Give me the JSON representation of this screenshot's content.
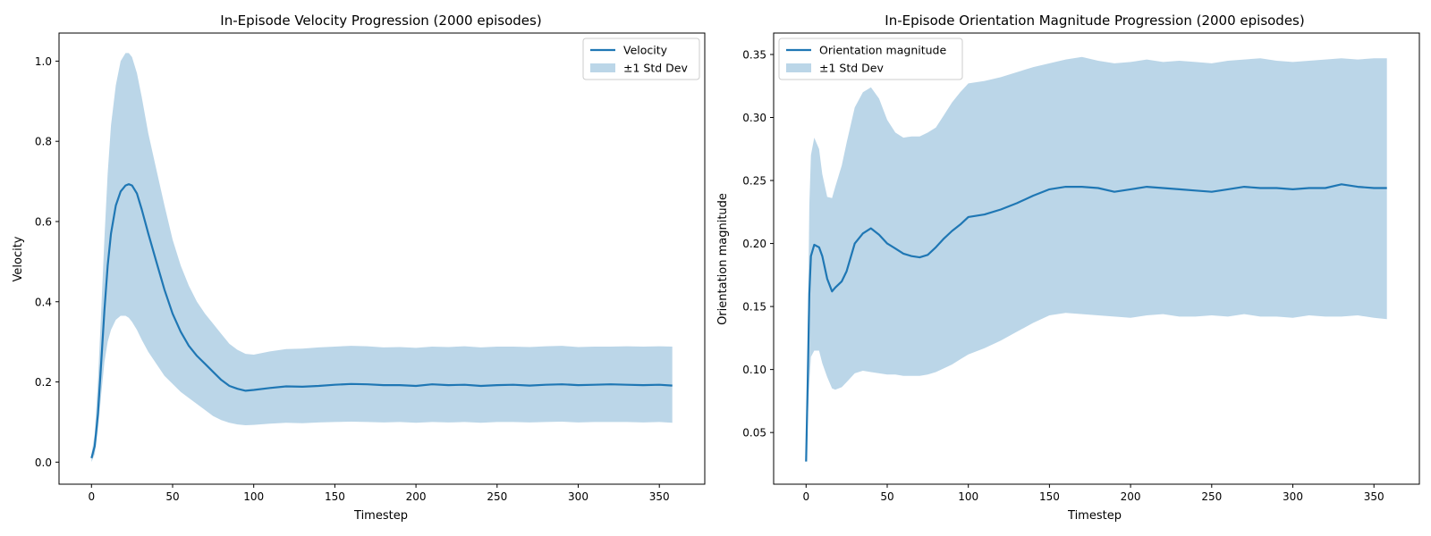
{
  "colors": {
    "line": "#1f77b4",
    "band": "#1f77b4",
    "band_opacity": 0.3
  },
  "chart_data": [
    {
      "type": "line",
      "title": "In-Episode Velocity Progression (2000 episodes)",
      "xlabel": "Timestep",
      "ylabel": "Velocity",
      "xlim": [
        -20,
        378
      ],
      "ylim": [
        -0.055,
        1.07
      ],
      "xticks": [
        0,
        50,
        100,
        150,
        200,
        250,
        300,
        350
      ],
      "yticks": [
        0.0,
        0.2,
        0.4,
        0.6,
        0.8,
        1.0
      ],
      "ytick_labels": [
        "0.0",
        "0.2",
        "0.4",
        "0.6",
        "0.8",
        "1.0"
      ],
      "legend_position": "upper right",
      "series": [
        {
          "name": "Velocity",
          "kind": "line",
          "x": [
            0,
            2,
            4,
            6,
            8,
            10,
            12,
            15,
            18,
            21,
            23,
            25,
            28,
            31,
            35,
            40,
            45,
            50,
            55,
            60,
            65,
            70,
            75,
            80,
            85,
            90,
            95,
            100,
            110,
            120,
            130,
            140,
            150,
            160,
            170,
            180,
            190,
            200,
            210,
            220,
            230,
            240,
            250,
            260,
            270,
            280,
            290,
            300,
            310,
            320,
            330,
            340,
            350,
            358
          ],
          "y": [
            0.01,
            0.04,
            0.12,
            0.25,
            0.38,
            0.49,
            0.57,
            0.64,
            0.675,
            0.69,
            0.693,
            0.69,
            0.67,
            0.63,
            0.57,
            0.5,
            0.43,
            0.37,
            0.325,
            0.29,
            0.265,
            0.245,
            0.225,
            0.205,
            0.19,
            0.183,
            0.178,
            0.18,
            0.185,
            0.189,
            0.188,
            0.19,
            0.193,
            0.195,
            0.194,
            0.192,
            0.192,
            0.19,
            0.194,
            0.192,
            0.193,
            0.19,
            0.192,
            0.193,
            0.191,
            0.193,
            0.194,
            0.192,
            0.193,
            0.194,
            0.193,
            0.192,
            0.193,
            0.191
          ]
        },
        {
          "name": "±1 Std Dev",
          "kind": "band",
          "x": [
            0,
            2,
            4,
            6,
            8,
            10,
            12,
            15,
            18,
            21,
            23,
            25,
            28,
            31,
            35,
            40,
            45,
            50,
            55,
            60,
            65,
            70,
            75,
            80,
            85,
            90,
            95,
            100,
            110,
            120,
            130,
            140,
            150,
            160,
            170,
            180,
            190,
            200,
            210,
            220,
            230,
            240,
            250,
            260,
            270,
            280,
            290,
            300,
            310,
            320,
            330,
            340,
            350,
            358
          ],
          "lower": [
            0.0,
            0.02,
            0.08,
            0.17,
            0.25,
            0.3,
            0.33,
            0.355,
            0.365,
            0.365,
            0.36,
            0.35,
            0.33,
            0.305,
            0.275,
            0.245,
            0.215,
            0.195,
            0.175,
            0.16,
            0.145,
            0.13,
            0.115,
            0.105,
            0.098,
            0.094,
            0.092,
            0.093,
            0.096,
            0.098,
            0.097,
            0.099,
            0.1,
            0.101,
            0.1,
            0.099,
            0.1,
            0.098,
            0.1,
            0.099,
            0.1,
            0.098,
            0.1,
            0.1,
            0.099,
            0.1,
            0.101,
            0.099,
            0.1,
            0.1,
            0.1,
            0.099,
            0.1,
            0.098
          ],
          "upper": [
            0.02,
            0.07,
            0.2,
            0.38,
            0.56,
            0.72,
            0.84,
            0.94,
            1.0,
            1.02,
            1.02,
            1.01,
            0.97,
            0.91,
            0.82,
            0.73,
            0.64,
            0.555,
            0.49,
            0.44,
            0.4,
            0.37,
            0.345,
            0.32,
            0.295,
            0.28,
            0.27,
            0.268,
            0.276,
            0.282,
            0.283,
            0.286,
            0.288,
            0.29,
            0.289,
            0.286,
            0.287,
            0.285,
            0.288,
            0.287,
            0.289,
            0.286,
            0.288,
            0.288,
            0.287,
            0.289,
            0.29,
            0.287,
            0.288,
            0.288,
            0.289,
            0.288,
            0.289,
            0.288
          ]
        }
      ]
    },
    {
      "type": "line",
      "title": "In-Episode Orientation Magnitude Progression (2000 episodes)",
      "xlabel": "Timestep",
      "ylabel": "Orientation magnitude",
      "xlim": [
        -20,
        378
      ],
      "ylim": [
        0.009,
        0.367
      ],
      "xticks": [
        0,
        50,
        100,
        150,
        200,
        250,
        300,
        350
      ],
      "yticks": [
        0.05,
        0.1,
        0.15,
        0.2,
        0.25,
        0.3,
        0.35
      ],
      "ytick_labels": [
        "0.05",
        "0.10",
        "0.15",
        "0.20",
        "0.25",
        "0.30",
        "0.35"
      ],
      "legend_position": "upper left",
      "series": [
        {
          "name": "Orientation magnitude",
          "kind": "line",
          "x": [
            0,
            1,
            2,
            3,
            5,
            8,
            10,
            13,
            16,
            18,
            22,
            25,
            30,
            35,
            40,
            45,
            50,
            55,
            60,
            65,
            70,
            75,
            80,
            85,
            90,
            95,
            100,
            110,
            120,
            130,
            140,
            150,
            160,
            170,
            180,
            190,
            200,
            210,
            220,
            230,
            240,
            250,
            260,
            270,
            280,
            290,
            300,
            310,
            320,
            330,
            340,
            350,
            358
          ],
          "y": [
            0.027,
            0.09,
            0.16,
            0.19,
            0.199,
            0.197,
            0.19,
            0.172,
            0.162,
            0.165,
            0.17,
            0.178,
            0.2,
            0.208,
            0.212,
            0.207,
            0.2,
            0.196,
            0.192,
            0.19,
            0.189,
            0.191,
            0.197,
            0.204,
            0.21,
            0.215,
            0.221,
            0.223,
            0.227,
            0.232,
            0.238,
            0.243,
            0.245,
            0.245,
            0.244,
            0.241,
            0.243,
            0.245,
            0.244,
            0.243,
            0.242,
            0.241,
            0.243,
            0.245,
            0.244,
            0.244,
            0.243,
            0.244,
            0.244,
            0.247,
            0.245,
            0.244,
            0.244
          ]
        },
        {
          "name": "±1 Std Dev",
          "kind": "band",
          "x": [
            0,
            1,
            2,
            3,
            5,
            8,
            10,
            13,
            16,
            18,
            22,
            25,
            30,
            35,
            40,
            45,
            50,
            55,
            60,
            65,
            70,
            75,
            80,
            85,
            90,
            95,
            100,
            110,
            120,
            130,
            140,
            150,
            160,
            170,
            180,
            190,
            200,
            210,
            220,
            230,
            240,
            250,
            260,
            270,
            280,
            290,
            300,
            310,
            320,
            330,
            340,
            350,
            358
          ],
          "lower": [
            0.027,
            0.06,
            0.09,
            0.11,
            0.115,
            0.115,
            0.105,
            0.094,
            0.085,
            0.084,
            0.086,
            0.09,
            0.097,
            0.099,
            0.098,
            0.097,
            0.096,
            0.096,
            0.095,
            0.095,
            0.095,
            0.096,
            0.098,
            0.101,
            0.104,
            0.108,
            0.112,
            0.117,
            0.123,
            0.13,
            0.137,
            0.143,
            0.145,
            0.144,
            0.143,
            0.142,
            0.141,
            0.143,
            0.144,
            0.142,
            0.142,
            0.143,
            0.142,
            0.144,
            0.142,
            0.142,
            0.141,
            0.143,
            0.142,
            0.142,
            0.143,
            0.141,
            0.14
          ],
          "upper": [
            0.027,
            0.12,
            0.23,
            0.27,
            0.284,
            0.275,
            0.255,
            0.237,
            0.236,
            0.245,
            0.262,
            0.28,
            0.308,
            0.32,
            0.324,
            0.315,
            0.298,
            0.288,
            0.284,
            0.285,
            0.285,
            0.288,
            0.292,
            0.302,
            0.312,
            0.32,
            0.327,
            0.329,
            0.332,
            0.336,
            0.34,
            0.343,
            0.346,
            0.348,
            0.345,
            0.343,
            0.344,
            0.346,
            0.344,
            0.345,
            0.344,
            0.343,
            0.345,
            0.346,
            0.347,
            0.345,
            0.344,
            0.345,
            0.346,
            0.347,
            0.346,
            0.347,
            0.347
          ]
        }
      ]
    }
  ]
}
